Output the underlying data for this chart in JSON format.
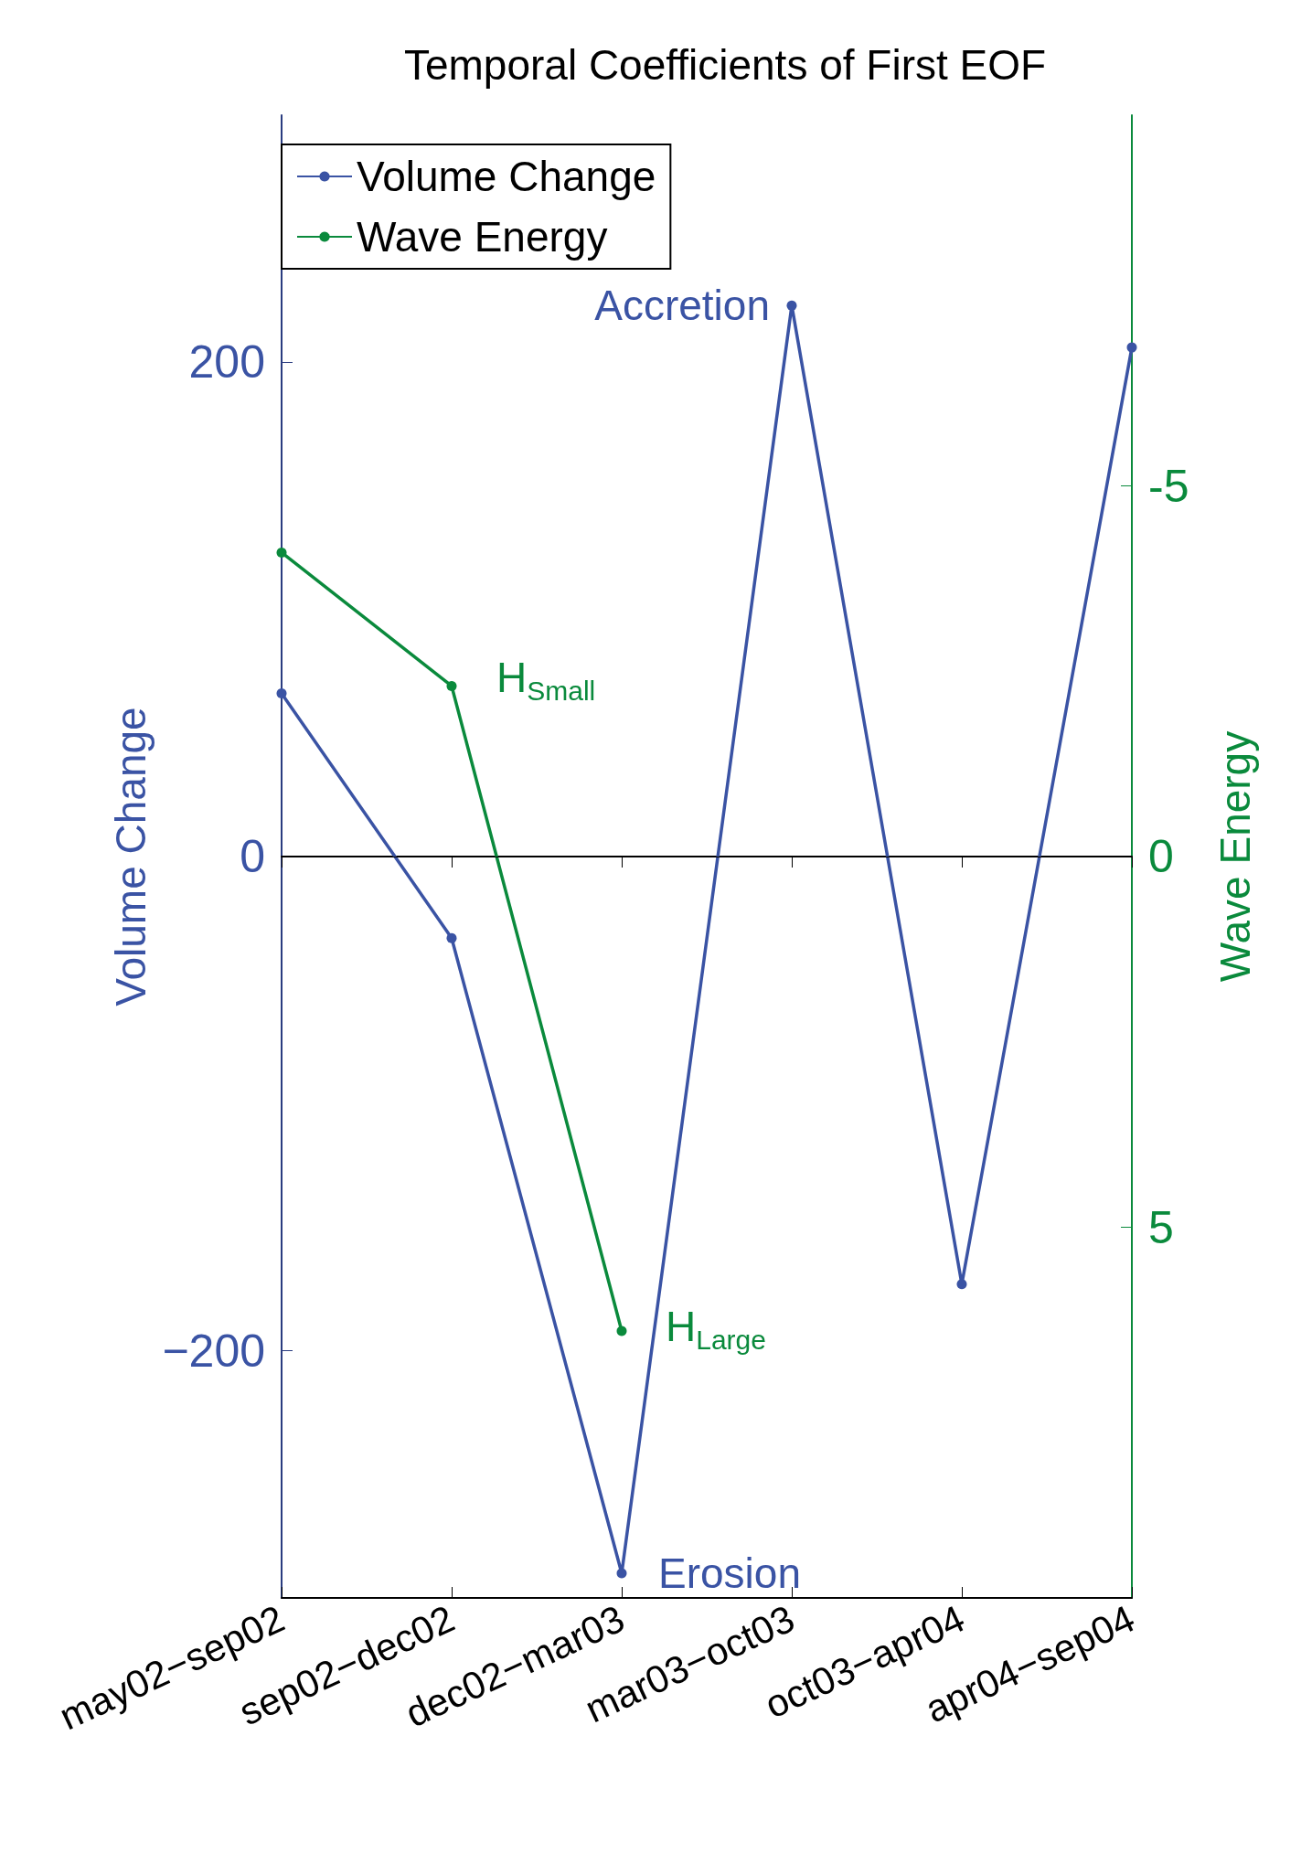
{
  "chart_data": {
    "type": "line",
    "title": "Temporal Coefficients of First EOF",
    "categories": [
      "may02−sep02",
      "sep02−dec02",
      "dec02−mar03",
      "mar03−oct03",
      "oct03−apr04",
      "apr04−sep04"
    ],
    "series": [
      {
        "name": "Volume Change",
        "color": "#3a53a4",
        "values": [
          66,
          -33,
          -290,
          223,
          -173,
          206
        ]
      },
      {
        "name": "Wave Energy",
        "color": "#0a8a3c",
        "axis": "y2",
        "values": [
          -4.1,
          -2.3,
          6.4,
          null,
          null,
          null
        ]
      }
    ],
    "ylabel": "Volume Change",
    "y2label": "Wave Energy",
    "ylim": [
      -300,
      300
    ],
    "yticks": [
      -200,
      0,
      200
    ],
    "y2lim": [
      10,
      -10
    ],
    "y2ticks": [
      -5,
      0,
      5
    ],
    "ref_lines": [
      {
        "axis": "y",
        "value": 0,
        "color": "#000000"
      }
    ],
    "annotations": [
      {
        "text": "Accretion",
        "x": "mar03−oct03",
        "y": 223
      },
      "H$_{Small}$",
      "H$_{Large}$",
      {
        "text": "Erosion",
        "x": "dec02−mar03",
        "y": -290
      }
    ],
    "legend": "top left",
    "grid": false,
    "marker": "circle"
  }
}
